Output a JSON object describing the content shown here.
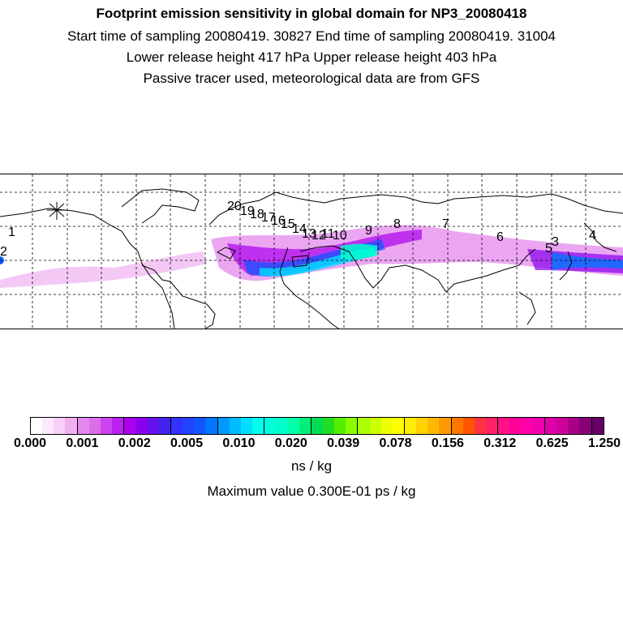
{
  "header": {
    "title": "Footprint emission sensitivity in global domain for NP3_20080418",
    "line2": "Start time of sampling 20080419. 30827     End time of sampling 20080419. 31004",
    "line3": "Lower release height  417 hPa       Upper release height  403 hPa",
    "line4": "Passive tracer used, meteorological data are from GFS"
  },
  "map": {
    "trajectory_labels": [
      "1",
      "2",
      "20",
      "19",
      "18",
      "17",
      "16",
      "15",
      "14",
      "13",
      "12",
      "11",
      "10",
      "9",
      "8",
      "7",
      "6",
      "5",
      "4",
      "3"
    ],
    "release_marker": "release-star-icon"
  },
  "colorbar": {
    "tick_labels": [
      "0.000",
      "0.001",
      "0.002",
      "0.005",
      "0.010",
      "0.020",
      "0.039",
      "0.078",
      "0.156",
      "0.312",
      "0.625",
      "1.250"
    ],
    "colors": [
      "#ffffff",
      "#fde8fd",
      "#f8d0f8",
      "#f0b0f0",
      "#e488ee",
      "#dc6ee8",
      "#cc44ee",
      "#bb22ee",
      "#aa00ee",
      "#8800ee",
      "#6611ee",
      "#4422ee",
      "#3333ff",
      "#2244ff",
      "#1155ff",
      "#0077ff",
      "#0099ff",
      "#00bbff",
      "#00ddff",
      "#00ffee",
      "#00ffdd",
      "#00ffcc",
      "#00ffaa",
      "#00ee77",
      "#00dd55",
      "#22dd22",
      "#55ee00",
      "#88ff00",
      "#aaff00",
      "#ccff00",
      "#eeff00",
      "#ffff00",
      "#ffee00",
      "#ffd200",
      "#ffb800",
      "#ff9900",
      "#ff7700",
      "#ff5500",
      "#ff3344",
      "#ff2266",
      "#ff1188",
      "#ff0099",
      "#ff00aa",
      "#ee00aa",
      "#dd00aa",
      "#cc0099",
      "#aa0088",
      "#880077",
      "#660066"
    ],
    "unit": "ns / kg"
  },
  "footer": {
    "max_value": "Maximum value  0.300E-01 ps / kg"
  }
}
